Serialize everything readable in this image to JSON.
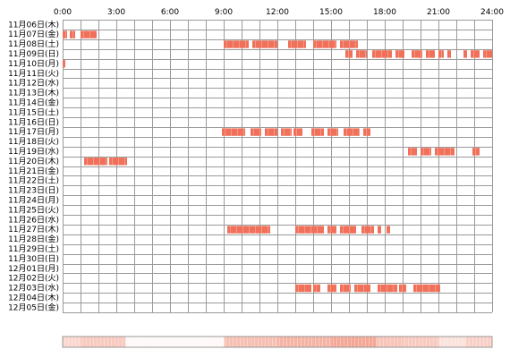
{
  "chart_data": {
    "type": "timeline",
    "x_ticks": [
      "0:00",
      "3:00",
      "6:00",
      "9:00",
      "12:00",
      "15:00",
      "18:00",
      "21:00",
      "24:00"
    ],
    "xlim": [
      0,
      24
    ],
    "x_unit": "hours",
    "rows": [
      "11月06日(木)",
      "11月07日(金)",
      "11月08日(土)",
      "11月09日(日)",
      "11月10日(月)",
      "11月11日(火)",
      "11月12日(水)",
      "11月13日(木)",
      "11月14日(金)",
      "11月15日(土)",
      "11月16日(日)",
      "11月17日(月)",
      "11月18日(火)",
      "11月19日(水)",
      "11月20日(木)",
      "11月21日(金)",
      "11月22日(土)",
      "11月23日(日)",
      "11月24日(月)",
      "11月25日(火)",
      "11月26日(水)",
      "11月27日(木)",
      "11月28日(金)",
      "11月29日(土)",
      "11月30日(日)",
      "12月01日(月)",
      "12月02日(火)",
      "12月03日(水)",
      "12月04日(木)",
      "12月05日(金)"
    ],
    "grid": true,
    "colors": {
      "segment": "#f0705a",
      "segment_light": "#f7b3a3",
      "grid": "#9a9a9a",
      "density_high": "#f08a72",
      "density_low": "#fde4dc"
    },
    "segments": [
      [
        1,
        0.0,
        0.25
      ],
      [
        1,
        0.4,
        0.7
      ],
      [
        1,
        1.0,
        1.9
      ],
      [
        2,
        9.0,
        10.4
      ],
      [
        2,
        10.6,
        12.0
      ],
      [
        2,
        12.6,
        13.6
      ],
      [
        2,
        14.0,
        15.3
      ],
      [
        2,
        15.5,
        16.5
      ],
      [
        3,
        15.8,
        16.2
      ],
      [
        3,
        16.4,
        17.0
      ],
      [
        3,
        17.3,
        18.4
      ],
      [
        3,
        18.6,
        19.1
      ],
      [
        3,
        19.5,
        20.1
      ],
      [
        3,
        20.3,
        20.8
      ],
      [
        3,
        21.0,
        21.3
      ],
      [
        3,
        21.5,
        21.7
      ],
      [
        3,
        22.4,
        22.6
      ],
      [
        3,
        22.8,
        23.3
      ],
      [
        3,
        23.5,
        24.0
      ],
      [
        4,
        0.0,
        0.15
      ],
      [
        11,
        8.9,
        10.2
      ],
      [
        11,
        10.5,
        11.1
      ],
      [
        11,
        11.3,
        12.0
      ],
      [
        11,
        12.2,
        12.8
      ],
      [
        11,
        12.9,
        13.4
      ],
      [
        11,
        13.9,
        14.6
      ],
      [
        11,
        14.8,
        15.4
      ],
      [
        11,
        15.7,
        16.6
      ],
      [
        11,
        16.8,
        17.2
      ],
      [
        13,
        19.3,
        19.8
      ],
      [
        13,
        20.0,
        20.6
      ],
      [
        13,
        20.8,
        21.9
      ],
      [
        13,
        22.9,
        23.3
      ],
      [
        14,
        1.2,
        2.5
      ],
      [
        14,
        2.6,
        3.6
      ],
      [
        21,
        9.2,
        11.6
      ],
      [
        21,
        13.0,
        14.6
      ],
      [
        21,
        14.8,
        15.3
      ],
      [
        21,
        15.5,
        16.4
      ],
      [
        21,
        16.7,
        17.4
      ],
      [
        21,
        17.6,
        17.8
      ],
      [
        21,
        18.1,
        18.3
      ],
      [
        27,
        13.0,
        13.9
      ],
      [
        27,
        14.0,
        14.4
      ],
      [
        27,
        14.8,
        15.3
      ],
      [
        27,
        15.5,
        16.1
      ],
      [
        27,
        16.3,
        17.2
      ],
      [
        27,
        17.6,
        18.7
      ],
      [
        27,
        18.8,
        19.2
      ],
      [
        27,
        19.6,
        21.1
      ]
    ],
    "density": [
      [
        0.0,
        1.0,
        0.35
      ],
      [
        1.0,
        3.5,
        0.45
      ],
      [
        3.5,
        9.0,
        0.05
      ],
      [
        9.0,
        12.0,
        0.55
      ],
      [
        12.0,
        15.0,
        0.65
      ],
      [
        15.0,
        17.5,
        0.75
      ],
      [
        17.5,
        19.0,
        0.5
      ],
      [
        19.0,
        21.0,
        0.45
      ],
      [
        21.0,
        22.5,
        0.25
      ],
      [
        22.5,
        24.0,
        0.4
      ]
    ]
  }
}
